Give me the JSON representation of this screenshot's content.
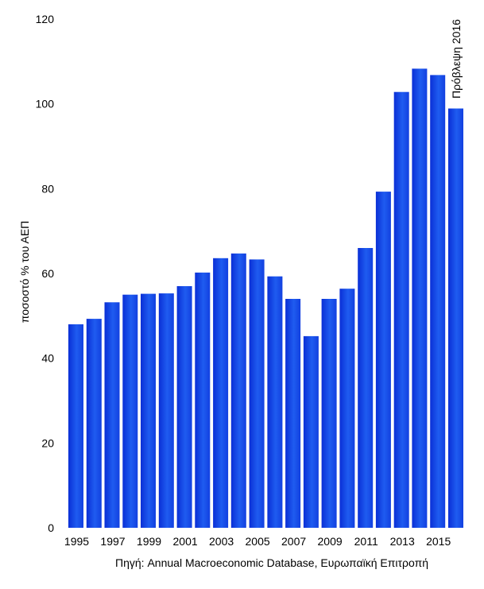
{
  "chart_data": {
    "type": "bar",
    "categories": [
      "1995",
      "1996",
      "1997",
      "1998",
      "1999",
      "2000",
      "2001",
      "2002",
      "2003",
      "2004",
      "2005",
      "2006",
      "2007",
      "2008",
      "2009",
      "2010",
      "2011",
      "2012",
      "2013",
      "2014",
      "2015",
      "2016"
    ],
    "values": [
      48,
      49.3,
      53.2,
      55,
      55.2,
      55.3,
      57,
      60.2,
      63.6,
      64.7,
      63.3,
      59.3,
      54,
      45.2,
      54,
      56.4,
      66,
      79.3,
      102.8,
      108.3,
      106.8,
      98.9
    ],
    "x_tick_labels": [
      "1995",
      "",
      "1997",
      "",
      "1999",
      "",
      "2001",
      "",
      "2003",
      "",
      "2005",
      "",
      "2007",
      "",
      "2009",
      "",
      "2011",
      "",
      "2013",
      "",
      "2015",
      ""
    ],
    "ylabel": "ποσοστό % του ΑΕΠ",
    "xlabel": "",
    "ylim": [
      0,
      120
    ],
    "yticks": [
      0,
      20,
      40,
      60,
      80,
      100,
      120
    ],
    "grid": false,
    "bar_color": "#1a55e8",
    "annotation": "Πρόβλεψη 2016"
  },
  "source_note": "Πηγή: Annual Macroeconomic Database, Ευρωπαϊκή Επιτροπή"
}
